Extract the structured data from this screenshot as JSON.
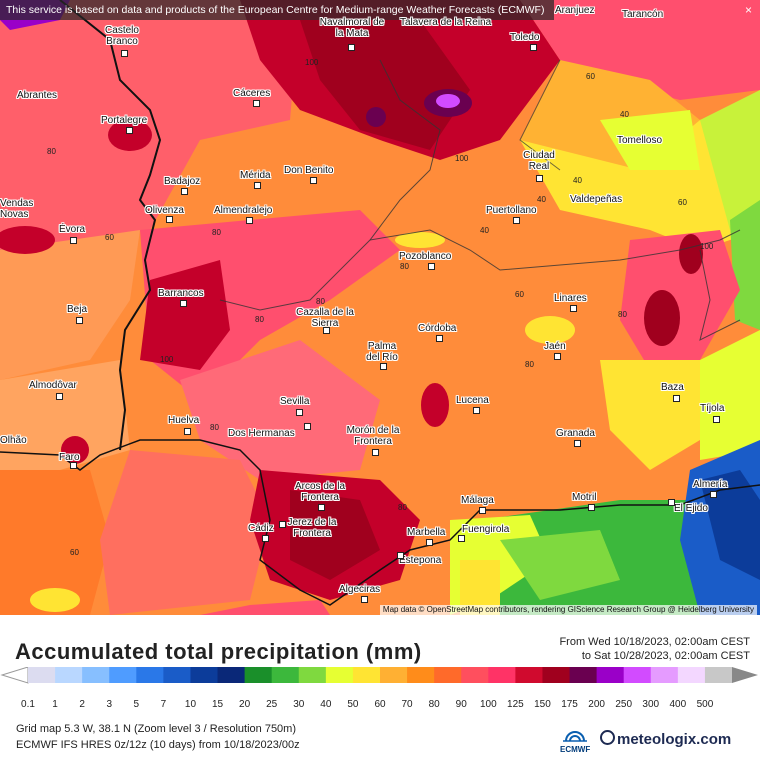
{
  "banner": "This service is based on data and products of the European Centre for Medium-range Weather Forecasts (ECMWF)",
  "close_icon": "close-icon",
  "attribution": "Map data © OpenStreetMap contributors, rendering GIScience Research Group @ Heidelberg University",
  "cities": [
    "Castelo Branco",
    "Navalmoral de la Mata",
    "Aranjuez",
    "Tarancón",
    "Abrantes",
    "Toledo",
    "Cáceres",
    "Portalegre",
    "Ciudad Real",
    "Tomelloso",
    "Badajoz",
    "Mérida",
    "Don Benito",
    "Valdepeñas",
    "Olivenza",
    "Almendralejo",
    "Puertollano",
    "Évora",
    "Pozoblanco",
    "Barrancos",
    "Linares",
    "Beja",
    "Cazalla de la Sierra",
    "Córdoba",
    "Jaén",
    "Palma del Río",
    "Almodôvar",
    "Baza",
    "Sevilla",
    "Lucena",
    "Tíjola",
    "Huelva",
    "Dos Hermanas",
    "Granada",
    "Morón de la Frontera",
    "Faro",
    "Almería",
    "Arcos de la Frontera",
    "Málaga",
    "Motril",
    "El Ejido",
    "Cádiz",
    "Jerez de la Frontera",
    "Marbella",
    "Fuengirola",
    "Estepona",
    "Algeciras",
    "Talavera de la Reina",
    "Vendas Novas",
    "Olhão"
  ],
  "contour_values": [
    "100",
    "100",
    "80",
    "80",
    "80",
    "80",
    "100",
    "40",
    "40",
    "60",
    "60",
    "60",
    "40",
    "80",
    "80",
    "80",
    "80",
    "100",
    "80",
    "60",
    "40",
    "60"
  ],
  "legend": {
    "title": "Accumulated total precipitation (mm)",
    "from": "From Wed 10/18/2023, 02:00am CEST",
    "to": "to Sat 10/28/2023, 02:00am CEST",
    "scale_labels": [
      "0.1",
      "1",
      "2",
      "3",
      "5",
      "7",
      "10",
      "15",
      "20",
      "25",
      "30",
      "40",
      "50",
      "60",
      "70",
      "80",
      "90",
      "100",
      "125",
      "150",
      "175",
      "200",
      "250",
      "300",
      "400",
      "500"
    ],
    "colors": [
      "#dcdcf0",
      "#b9d7ff",
      "#87bfff",
      "#4f9cff",
      "#2a78e8",
      "#1a5cc8",
      "#0c3c9a",
      "#0a2878",
      "#1a8f2a",
      "#3cb83c",
      "#7fd93f",
      "#e6ff33",
      "#ffe433",
      "#ffb033",
      "#ff8c1a",
      "#ff6a2a",
      "#ff4f5e",
      "#ff3366",
      "#d00a2e",
      "#a0001e",
      "#6a0050",
      "#9a00c8",
      "#d24bff",
      "#e59bff",
      "#f3d7ff",
      "#c8c8c8"
    ],
    "grid_info": "Grid map 5.3 W, 38.1 N (Zoom level 3 / Resolution 750m)",
    "model_info": "ECMWF IFS HRES 0z/12z (10 days) from 10/18/2023/00z",
    "logo_ecmwf": "ECMWF",
    "logo_brand": "meteologix.com"
  }
}
